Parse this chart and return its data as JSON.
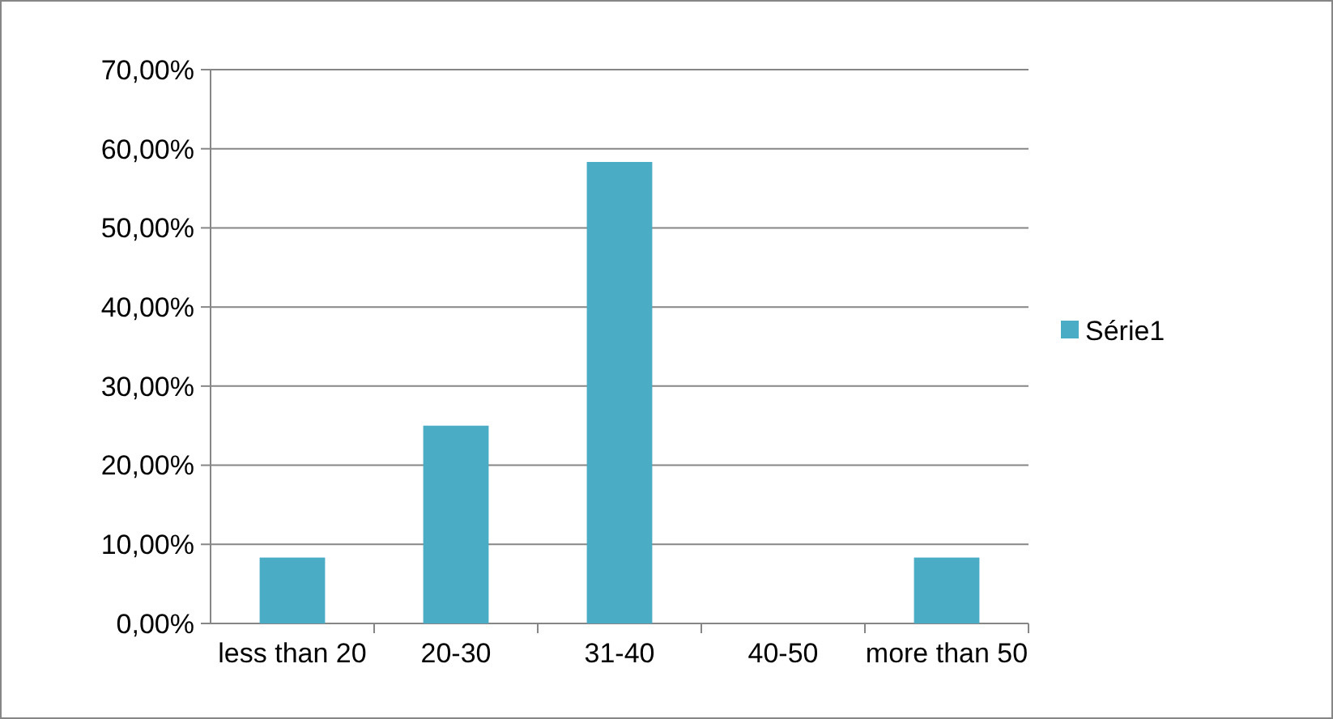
{
  "chart_data": {
    "type": "bar",
    "categories": [
      "less than 20",
      "20-30",
      "31-40",
      "40-50",
      "more than 50"
    ],
    "series": [
      {
        "name": "Série1",
        "color": "#4bacc6",
        "values": [
          8.33,
          25,
          58.33,
          0,
          8.33
        ]
      }
    ],
    "ylim": [
      0,
      70
    ],
    "yticks": [
      {
        "value": 0,
        "label": "0,00%"
      },
      {
        "value": 10,
        "label": "10,00%"
      },
      {
        "value": 20,
        "label": "20,00%"
      },
      {
        "value": 30,
        "label": "30,00%"
      },
      {
        "value": 40,
        "label": "40,00%"
      },
      {
        "value": 50,
        "label": "50,00%"
      },
      {
        "value": 60,
        "label": "60,00%"
      },
      {
        "value": 70,
        "label": "70,00%"
      }
    ],
    "grid": "y",
    "legend": "right"
  }
}
